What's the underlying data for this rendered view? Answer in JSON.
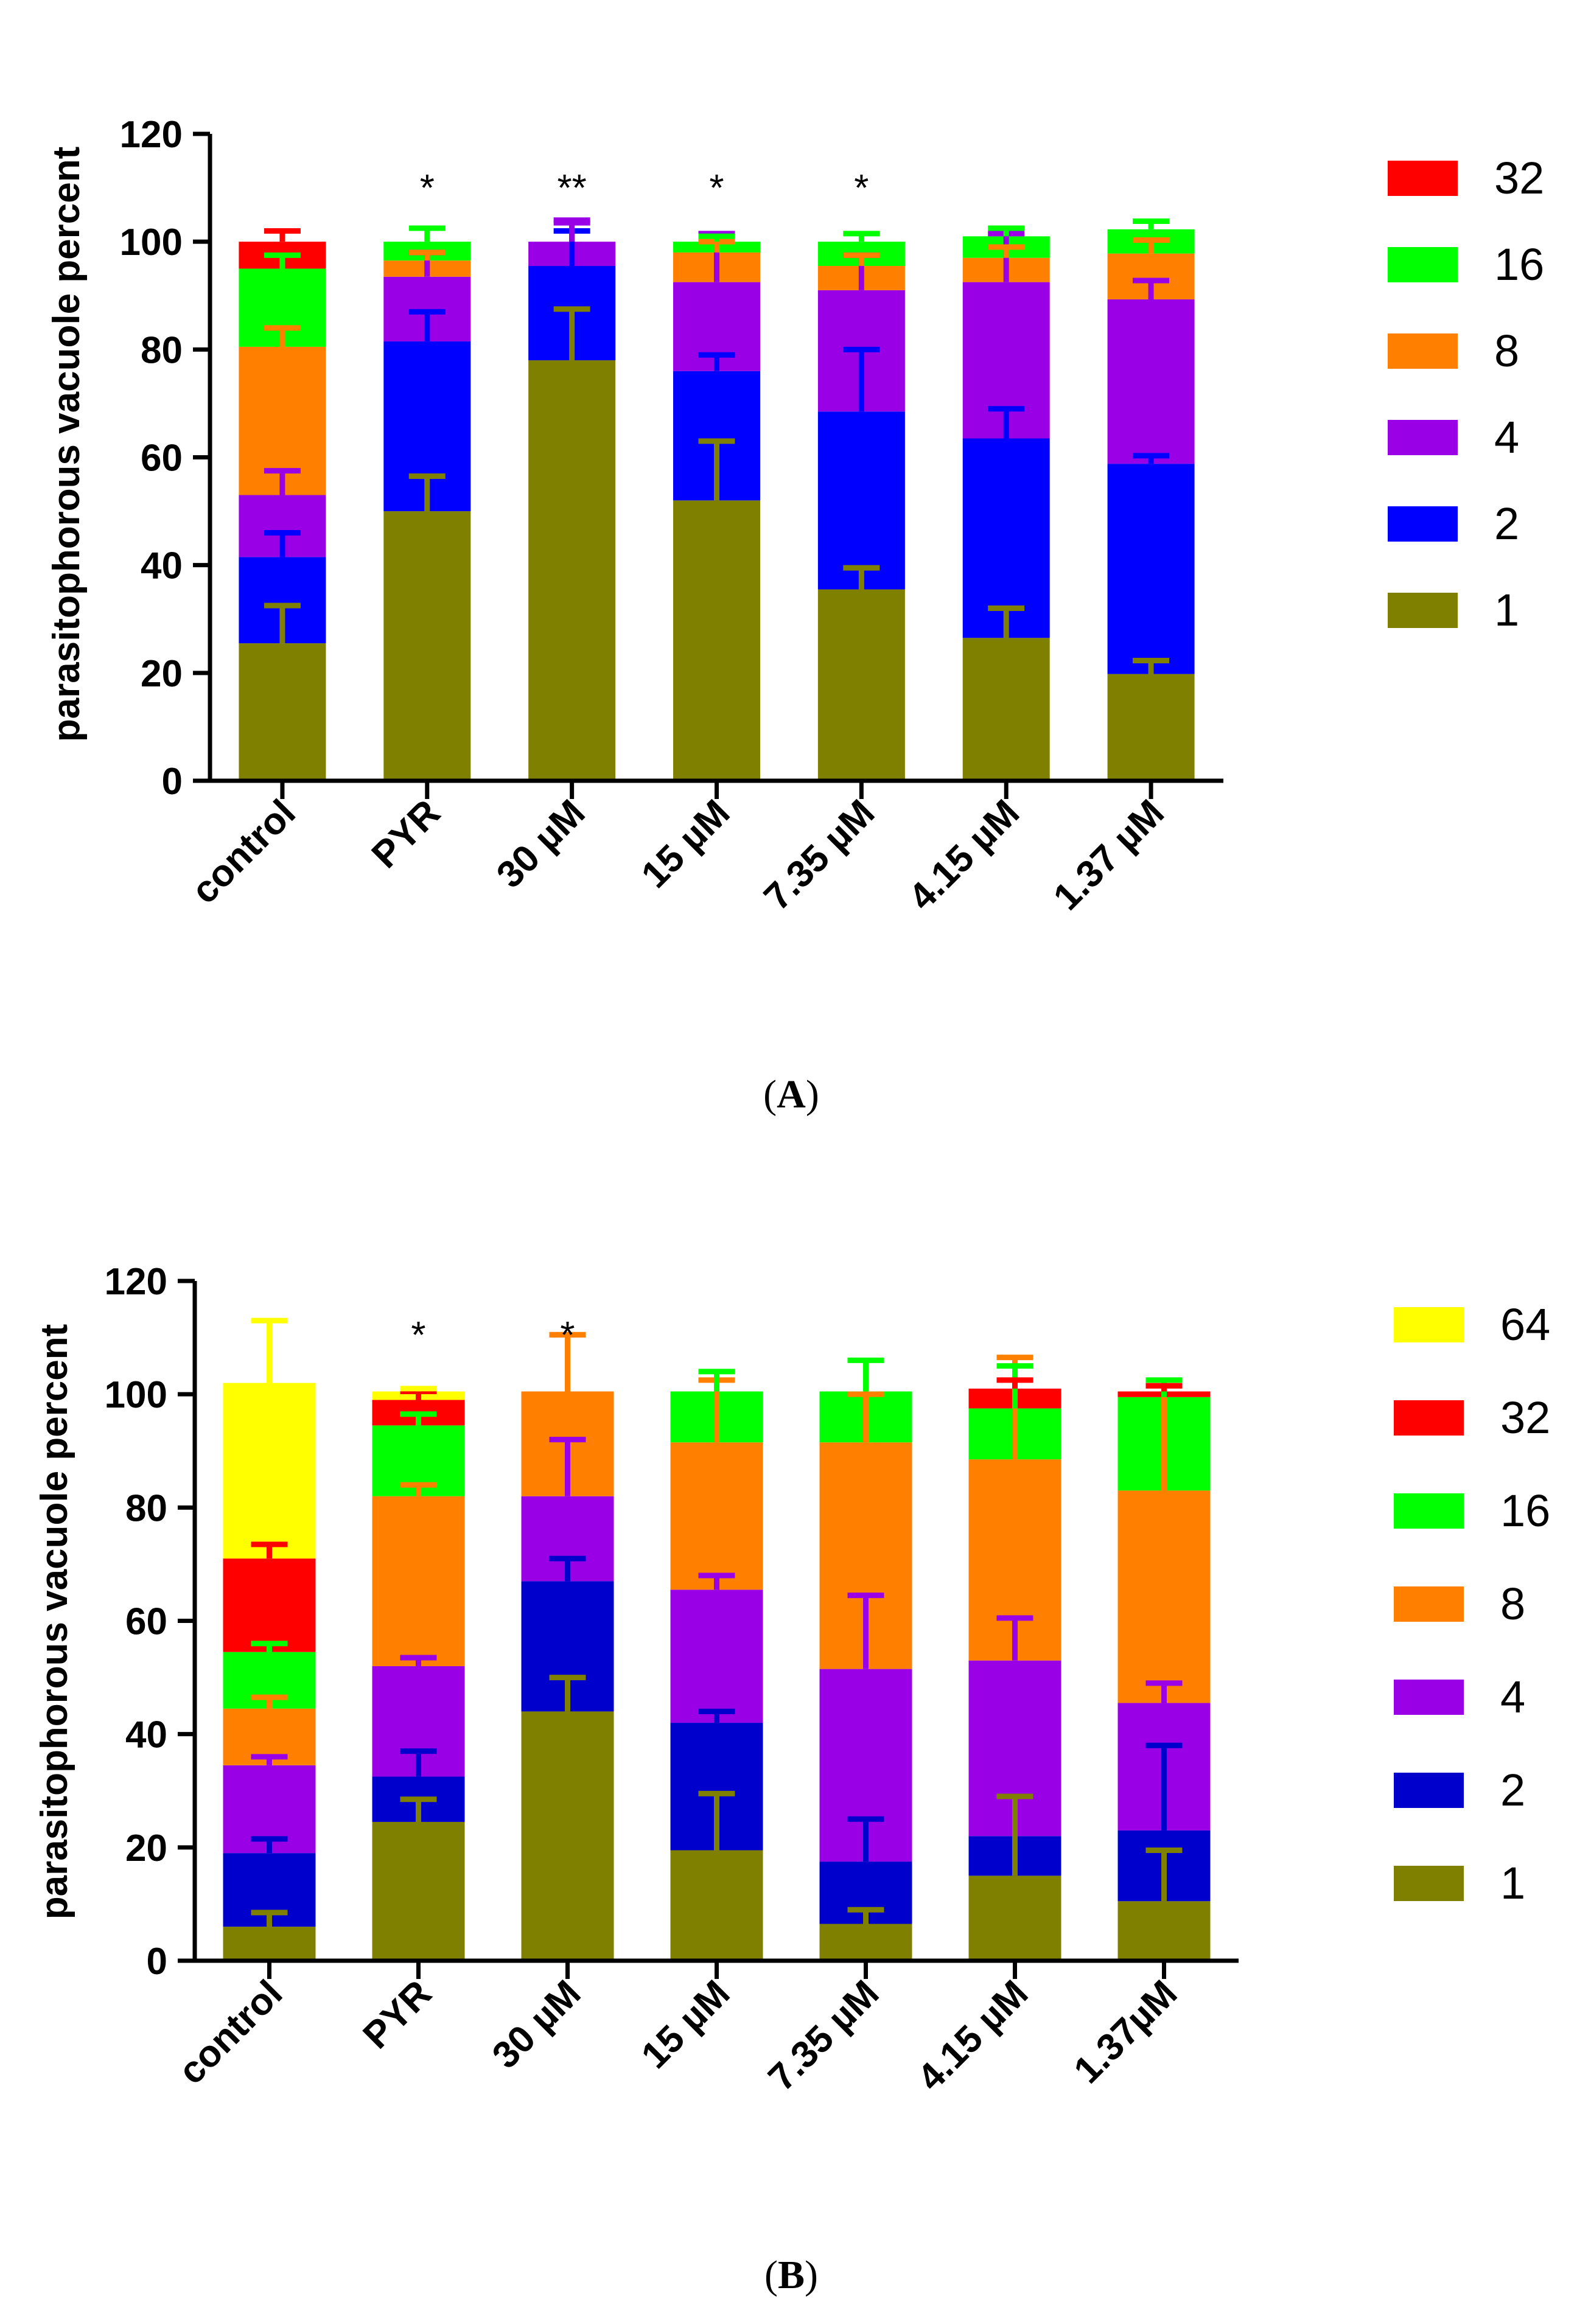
{
  "chart_data": [
    {
      "type": "bar",
      "stacked": true,
      "panel_label": "A",
      "ylabel": "parasitophorous vacuole percent",
      "xlabel": "",
      "ylim": [
        0,
        120
      ],
      "yticks": [
        0,
        20,
        40,
        60,
        80,
        100,
        120
      ],
      "categories": [
        "control",
        "PYR",
        "30 µM",
        "15 µM",
        "7.35 µM",
        "4.15 µM",
        "1.37 µM"
      ],
      "significance": [
        "",
        "*",
        "**",
        "*",
        "*",
        "",
        ""
      ],
      "legend_order": [
        "32",
        "16",
        "8",
        "4",
        "2",
        "1"
      ],
      "series": [
        {
          "name": "1",
          "color": "#808000",
          "values": [
            25.5,
            50,
            78,
            52,
            35.5,
            26.5,
            19.8
          ],
          "errors": [
            7,
            6.5,
            9.5,
            11,
            4,
            5.5,
            2.5
          ]
        },
        {
          "name": "2",
          "color": "#0000ff",
          "values": [
            16,
            31.5,
            17.5,
            24,
            33,
            37,
            39
          ],
          "errors": [
            4.5,
            5.5,
            6.5,
            3,
            11.5,
            5.5,
            1.5
          ]
        },
        {
          "name": "4",
          "color": "#9900e6",
          "values": [
            11.5,
            12,
            4.5,
            16.5,
            22.5,
            29,
            30.5
          ],
          "errors": [
            4.5,
            4.5,
            3.5,
            9,
            6.5,
            9,
            3.5
          ]
        },
        {
          "name": "8",
          "color": "#ff8000",
          "values": [
            27.5,
            3,
            0,
            5.5,
            4.5,
            4.5,
            8.5
          ],
          "errors": [
            3.5,
            1.5,
            0,
            2,
            2,
            2,
            2.5
          ]
        },
        {
          "name": "16",
          "color": "#00ff00",
          "values": [
            14.5,
            3.5,
            0,
            2,
            4.5,
            4,
            4.5
          ],
          "errors": [
            2.5,
            2.5,
            0,
            1,
            1.5,
            1.5,
            1.5
          ]
        },
        {
          "name": "32",
          "color": "#ff0000",
          "values": [
            5,
            0,
            0,
            0,
            0,
            0,
            0
          ],
          "errors": [
            2,
            0,
            0,
            0,
            0,
            0,
            0
          ]
        }
      ],
      "total_bar_errors": [
        0,
        0,
        4,
        0,
        0,
        0,
        0
      ]
    },
    {
      "type": "bar",
      "stacked": true,
      "panel_label": "B",
      "ylabel": "parasitophorous vacuole percent",
      "xlabel": "",
      "ylim": [
        0,
        120
      ],
      "yticks": [
        0,
        20,
        40,
        60,
        80,
        100,
        120
      ],
      "categories": [
        "control",
        "PYR",
        "30 µM",
        "15 µM",
        "7.35 µM",
        "4.15 µM",
        "1.37µM"
      ],
      "significance": [
        "",
        "*",
        "*",
        "",
        "",
        "",
        ""
      ],
      "legend_order": [
        "64",
        "32",
        "16",
        "8",
        "4",
        "2",
        "1"
      ],
      "series": [
        {
          "name": "1",
          "color": "#808000",
          "values": [
            6,
            24.5,
            44,
            19.5,
            6.5,
            15,
            10.5
          ],
          "errors": [
            2.5,
            4,
            6,
            10,
            2.5,
            14,
            9
          ]
        },
        {
          "name": "2",
          "color": "#0000cc",
          "values": [
            13,
            8,
            23,
            22.5,
            11,
            7,
            12.5
          ],
          "errors": [
            2.5,
            4.5,
            4,
            2,
            7.5,
            0,
            15
          ]
        },
        {
          "name": "4",
          "color": "#9900e6",
          "values": [
            15.5,
            19.5,
            15,
            23.5,
            34,
            31,
            22.5
          ],
          "errors": [
            1.5,
            1.5,
            10,
            2.5,
            13,
            7.5,
            3.5
          ]
        },
        {
          "name": "8",
          "color": "#ff8000",
          "values": [
            10,
            30,
            18.5,
            26,
            40,
            35.5,
            37.5
          ],
          "errors": [
            2,
            2,
            10,
            11,
            8.5,
            18,
            18.5
          ]
        },
        {
          "name": "16",
          "color": "#00ff00",
          "values": [
            10,
            12.5,
            0,
            9,
            9,
            9,
            16.5
          ],
          "errors": [
            1.5,
            2,
            0,
            3.5,
            5.5,
            7.5,
            3
          ]
        },
        {
          "name": "32",
          "color": "#ff0000",
          "values": [
            16.5,
            4.5,
            0,
            0,
            0,
            3.5,
            1
          ],
          "errors": [
            2.5,
            1.5,
            0,
            0,
            0,
            1.5,
            1
          ]
        },
        {
          "name": "64",
          "color": "#ffff00",
          "values": [
            31,
            1.5,
            0,
            0,
            0,
            0,
            0
          ],
          "errors": [
            11,
            0.5,
            0,
            0,
            0,
            0,
            0
          ]
        }
      ],
      "total_bar_errors": [
        0,
        0,
        10,
        0,
        0,
        0,
        0
      ]
    }
  ]
}
